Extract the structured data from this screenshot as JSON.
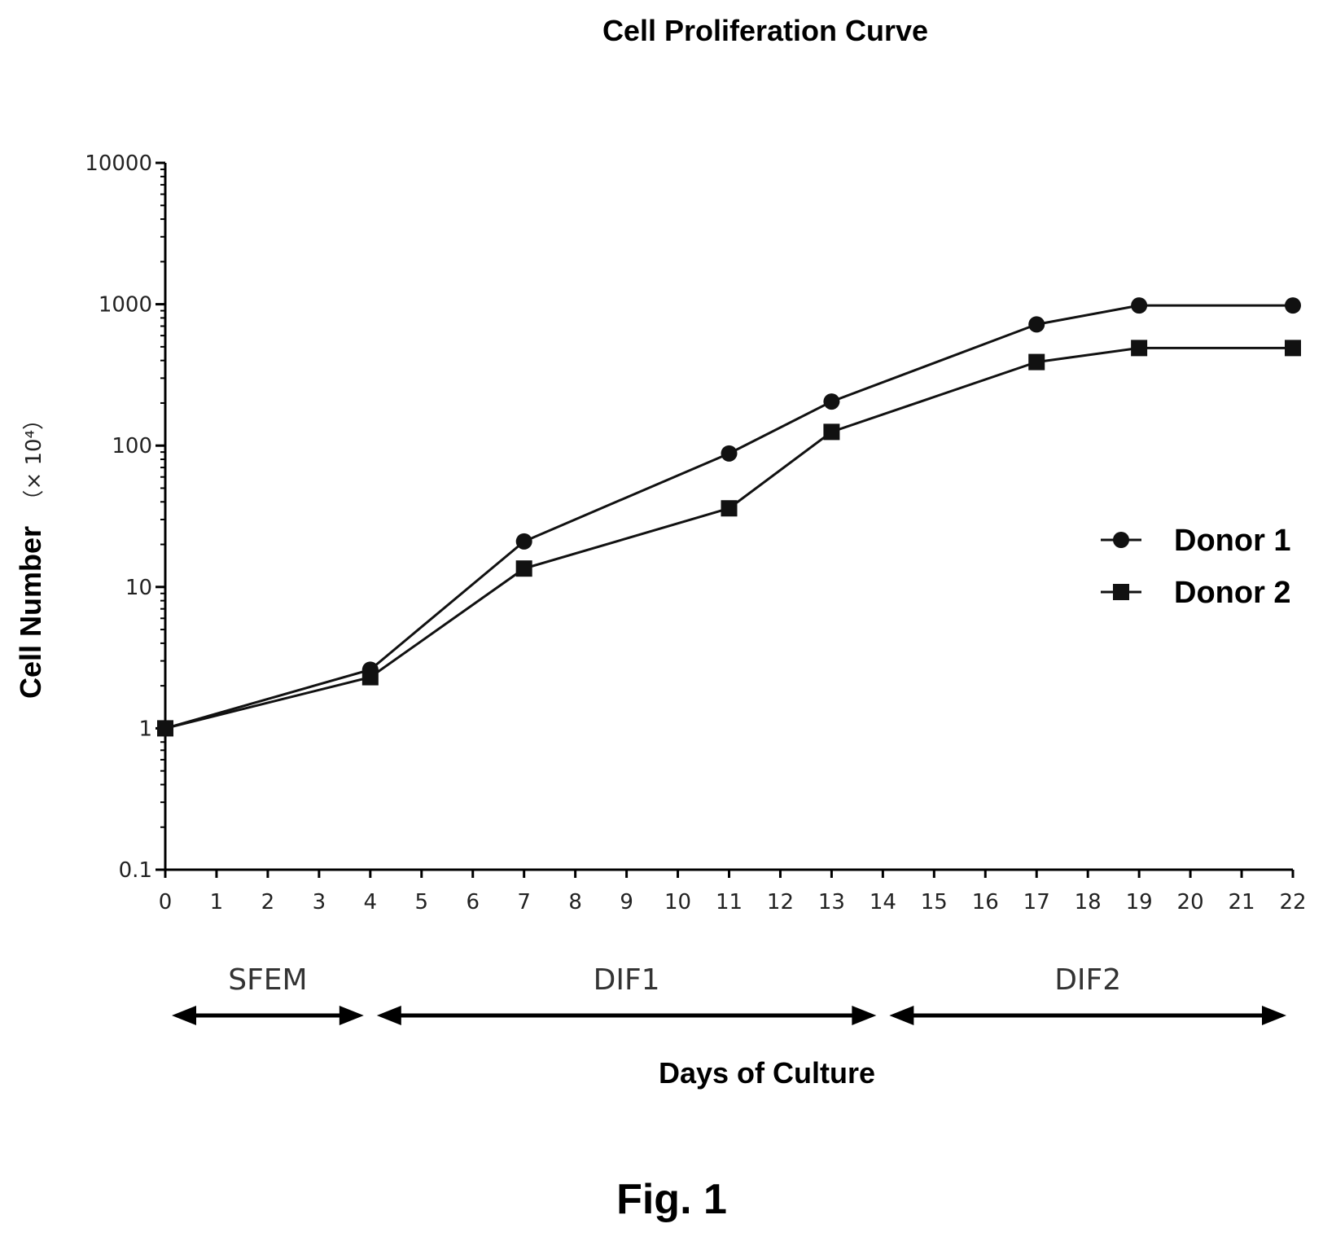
{
  "chart_data": {
    "type": "line",
    "title": "Cell Proliferation Curve",
    "xlabel": "Days of Culture",
    "ylabel": "Cell Number",
    "ylabel_unit": "（× 10⁴）",
    "xlim": [
      0,
      22
    ],
    "ylim": [
      0.1,
      10000
    ],
    "yscale": "log",
    "x_ticks": [
      "0",
      "1",
      "2",
      "3",
      "4",
      "5",
      "6",
      "7",
      "8",
      "9",
      "10",
      "11",
      "12",
      "13",
      "14",
      "15",
      "16",
      "17",
      "18",
      "19",
      "20",
      "21",
      "22"
    ],
    "y_ticks": [
      {
        "value": 0.1,
        "label": "0.1"
      },
      {
        "value": 1,
        "label": "1"
      },
      {
        "value": 10,
        "label": "10"
      },
      {
        "value": 100,
        "label": "100"
      },
      {
        "value": 1000,
        "label": "1000"
      },
      {
        "value": 10000,
        "label": "10000"
      }
    ],
    "grid": false,
    "legend_position": "right",
    "series": [
      {
        "name": "Donor 1",
        "marker": "circle",
        "x": [
          0,
          4,
          7,
          11,
          13,
          17,
          19,
          22
        ],
        "y": [
          1,
          2.6,
          21,
          88,
          205,
          720,
          980,
          980
        ]
      },
      {
        "name": "Donor 2",
        "marker": "square",
        "x": [
          0,
          4,
          7,
          11,
          13,
          17,
          19,
          22
        ],
        "y": [
          1,
          2.3,
          13.5,
          36,
          125,
          390,
          490,
          490
        ]
      }
    ],
    "phases": [
      {
        "label": "SFEM",
        "start": 0,
        "end": 4
      },
      {
        "label": "DIF1",
        "start": 4,
        "end": 14
      },
      {
        "label": "DIF2",
        "start": 14,
        "end": 22
      }
    ]
  },
  "figure_label": "Fig. 1"
}
